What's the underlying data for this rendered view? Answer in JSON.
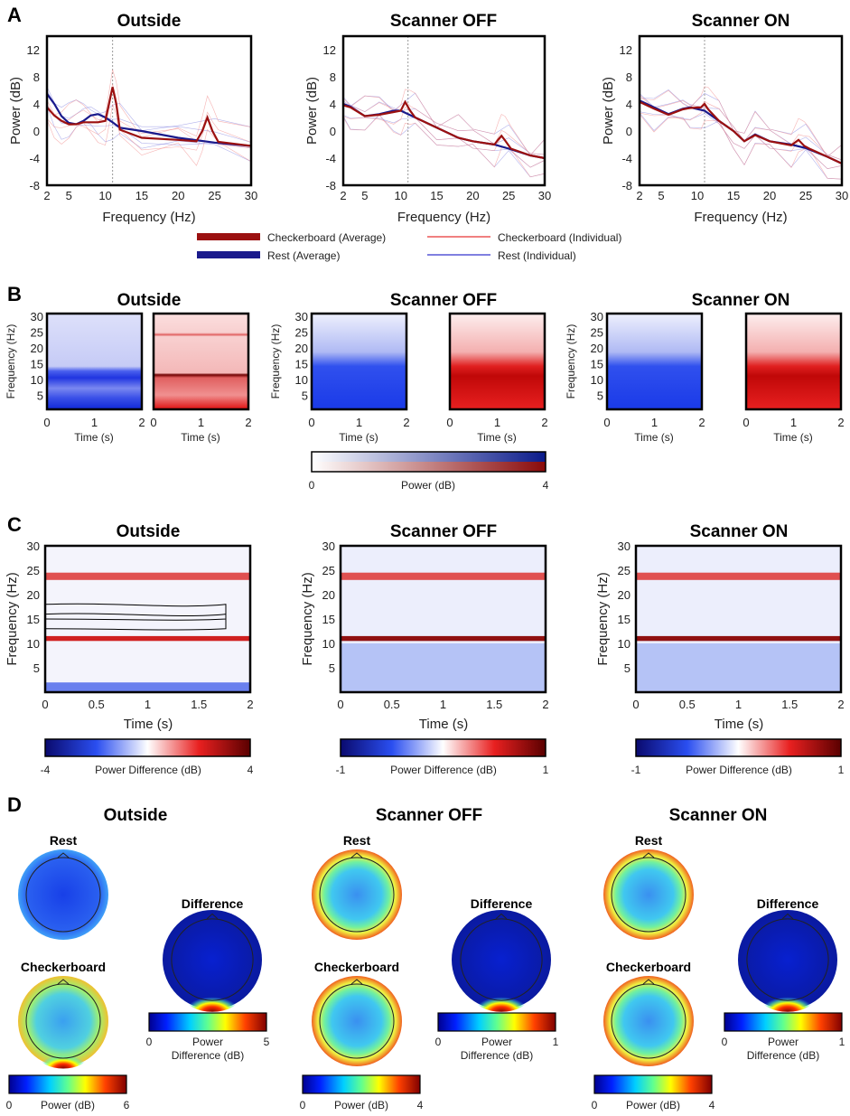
{
  "panel_labels": [
    "A",
    "B",
    "C",
    "D"
  ],
  "colors": {
    "checker_avg": "#9b1010",
    "rest_avg": "#1a1a8c",
    "checker_ind": "#f08080",
    "rest_ind": "#8080e0"
  },
  "legend": {
    "checker_avg": "Checkerboard (Average)",
    "rest_avg": "Rest (Average)",
    "checker_ind": "Checkerboard (Individual)",
    "rest_ind": "Rest (Individual)"
  },
  "chart_data": [
    {
      "type": "line",
      "title": "Outside",
      "xlabel": "Frequency (Hz)",
      "ylabel": "Power (dB)",
      "xlim": [
        2,
        30
      ],
      "ylim": [
        -8,
        14
      ],
      "xticks": [
        2,
        5,
        10,
        15,
        20,
        25,
        30
      ],
      "yticks": [
        -8,
        -4,
        0,
        4,
        8,
        12
      ],
      "vline": 11,
      "series": [
        {
          "name": "Rest (Average)",
          "points": [
            [
              2,
              5.5
            ],
            [
              3,
              4
            ],
            [
              4,
              2.2
            ],
            [
              5,
              1.2
            ],
            [
              6,
              1
            ],
            [
              7,
              1.5
            ],
            [
              8,
              2.3
            ],
            [
              9,
              2.5
            ],
            [
              10,
              2
            ],
            [
              11,
              1.3
            ],
            [
              12,
              0.5
            ],
            [
              15,
              0
            ],
            [
              20,
              -1
            ],
            [
              25,
              -1.7
            ],
            [
              30,
              -2.2
            ]
          ]
        },
        {
          "name": "Checkerboard (Average)",
          "points": [
            [
              2,
              3.5
            ],
            [
              3,
              2.3
            ],
            [
              4,
              1.5
            ],
            [
              5,
              1
            ],
            [
              6,
              1
            ],
            [
              7,
              1.3
            ],
            [
              9,
              1.3
            ],
            [
              10,
              1.5
            ],
            [
              10.5,
              4
            ],
            [
              11,
              6.5
            ],
            [
              11.5,
              4
            ],
            [
              12,
              0.2
            ],
            [
              15,
              -1
            ],
            [
              20,
              -1.3
            ],
            [
              22.5,
              -1.5
            ],
            [
              23.3,
              0
            ],
            [
              24,
              2
            ],
            [
              24.7,
              0
            ],
            [
              25.5,
              -1.6
            ],
            [
              30,
              -2.2
            ]
          ]
        }
      ]
    },
    {
      "type": "line",
      "title": "Scanner OFF",
      "xlabel": "Frequency (Hz)",
      "ylabel": "Power (dB)",
      "xlim": [
        2,
        30
      ],
      "ylim": [
        -8,
        14
      ],
      "xticks": [
        2,
        5,
        10,
        15,
        20,
        25,
        30
      ],
      "yticks": [
        -8,
        -4,
        0,
        4,
        8,
        12
      ],
      "vline": 11,
      "series": [
        {
          "name": "Rest (Average)",
          "points": [
            [
              2,
              4
            ],
            [
              3,
              3.6
            ],
            [
              5,
              2.2
            ],
            [
              7,
              2.5
            ],
            [
              9,
              3
            ],
            [
              10,
              3
            ],
            [
              12,
              2
            ],
            [
              15,
              0.5
            ],
            [
              18,
              -1
            ],
            [
              20,
              -1.5
            ],
            [
              23,
              -2
            ],
            [
              25,
              -2.6
            ],
            [
              28,
              -3.6
            ],
            [
              30,
              -4
            ]
          ]
        },
        {
          "name": "Checkerboard (Average)",
          "points": [
            [
              2,
              3.8
            ],
            [
              3,
              3.5
            ],
            [
              5,
              2.2
            ],
            [
              7,
              2.4
            ],
            [
              9,
              2.8
            ],
            [
              10,
              3
            ],
            [
              10.6,
              4.3
            ],
            [
              11.3,
              3
            ],
            [
              12,
              2
            ],
            [
              15,
              0.5
            ],
            [
              18,
              -1
            ],
            [
              20,
              -1.5
            ],
            [
              23,
              -2
            ],
            [
              23.6,
              -1.2
            ],
            [
              24,
              -0.7
            ],
            [
              24.5,
              -1.4
            ],
            [
              25.3,
              -2.6
            ],
            [
              28,
              -3.6
            ],
            [
              30,
              -4
            ]
          ]
        }
      ]
    },
    {
      "type": "line",
      "title": "Scanner ON",
      "xlabel": "Frequency (Hz)",
      "ylabel": "Power (dB)",
      "xlim": [
        2,
        30
      ],
      "ylim": [
        -8,
        14
      ],
      "xticks": [
        2,
        5,
        10,
        15,
        20,
        25,
        30
      ],
      "yticks": [
        -8,
        -4,
        0,
        4,
        8,
        12
      ],
      "vline": 11,
      "series": [
        {
          "name": "Rest (Average)",
          "points": [
            [
              2,
              4.5
            ],
            [
              4,
              3.5
            ],
            [
              6,
              2.5
            ],
            [
              8,
              3.3
            ],
            [
              9,
              3.5
            ],
            [
              11,
              3
            ],
            [
              13,
              1.5
            ],
            [
              15,
              0
            ],
            [
              16.5,
              -1.5
            ],
            [
              18,
              -0.5
            ],
            [
              20,
              -1.5
            ],
            [
              23,
              -2
            ],
            [
              25,
              -2.5
            ],
            [
              28,
              -3.8
            ],
            [
              30,
              -4.8
            ]
          ]
        },
        {
          "name": "Checkerboard (Average)",
          "points": [
            [
              2,
              4.3
            ],
            [
              4,
              3.3
            ],
            [
              6,
              2.4
            ],
            [
              8,
              3.2
            ],
            [
              9,
              3.4
            ],
            [
              10.5,
              3.5
            ],
            [
              11,
              4
            ],
            [
              11.5,
              3.2
            ],
            [
              13,
              1.5
            ],
            [
              15,
              0
            ],
            [
              16.5,
              -1.5
            ],
            [
              18,
              -0.6
            ],
            [
              20,
              -1.5
            ],
            [
              23,
              -2.1
            ],
            [
              24,
              -1.3
            ],
            [
              24.8,
              -2.2
            ],
            [
              25.5,
              -2.6
            ],
            [
              28,
              -3.8
            ],
            [
              30,
              -4.8
            ]
          ]
        }
      ]
    }
  ],
  "panel_b": {
    "titles": [
      "Outside",
      "Scanner OFF",
      "Scanner ON"
    ],
    "ylabel": "Frequency (Hz)",
    "yticks": [
      "30",
      "25",
      "20",
      "15",
      "10",
      "5"
    ],
    "xlabel": "Time (s)",
    "xticks": [
      "0",
      "1",
      "2"
    ],
    "colorbar": {
      "label": "Power (dB)",
      "min": "0",
      "max": "4"
    }
  },
  "panel_c": {
    "titles": [
      "Outside",
      "Scanner OFF",
      "Scanner ON"
    ],
    "ylabel": "Frequency (Hz)",
    "yticks": [
      "30",
      "25",
      "20",
      "15",
      "10",
      "5"
    ],
    "xlabel": "Time (s)",
    "xticks": [
      "0",
      "0.5",
      "1",
      "1.5",
      "2"
    ],
    "colorbars": [
      {
        "label": "Power Difference (dB)",
        "min": "-4",
        "max": "4"
      },
      {
        "label": "Power Difference (dB)",
        "min": "-1",
        "max": "1"
      },
      {
        "label": "Power Difference (dB)",
        "min": "-1",
        "max": "1"
      }
    ]
  },
  "panel_d": {
    "titles": [
      "Outside",
      "Scanner OFF",
      "Scanner ON"
    ],
    "rest": "Rest",
    "checkerboard": "Checkerboard",
    "difference": "Difference",
    "power_bars": [
      {
        "label": "Power (dB)",
        "min": "0",
        "max": "6"
      },
      {
        "label": "Power (dB)",
        "min": "0",
        "max": "4"
      },
      {
        "label": "Power (dB)",
        "min": "0",
        "max": "4"
      }
    ],
    "diff_bars": [
      {
        "label1": "Power",
        "label2": "Difference (dB)",
        "min": "0",
        "max": "5"
      },
      {
        "label1": "Power",
        "label2": "Difference (dB)",
        "min": "0",
        "max": "1"
      },
      {
        "label1": "Power",
        "label2": "Difference (dB)",
        "min": "0",
        "max": "1"
      }
    ]
  }
}
